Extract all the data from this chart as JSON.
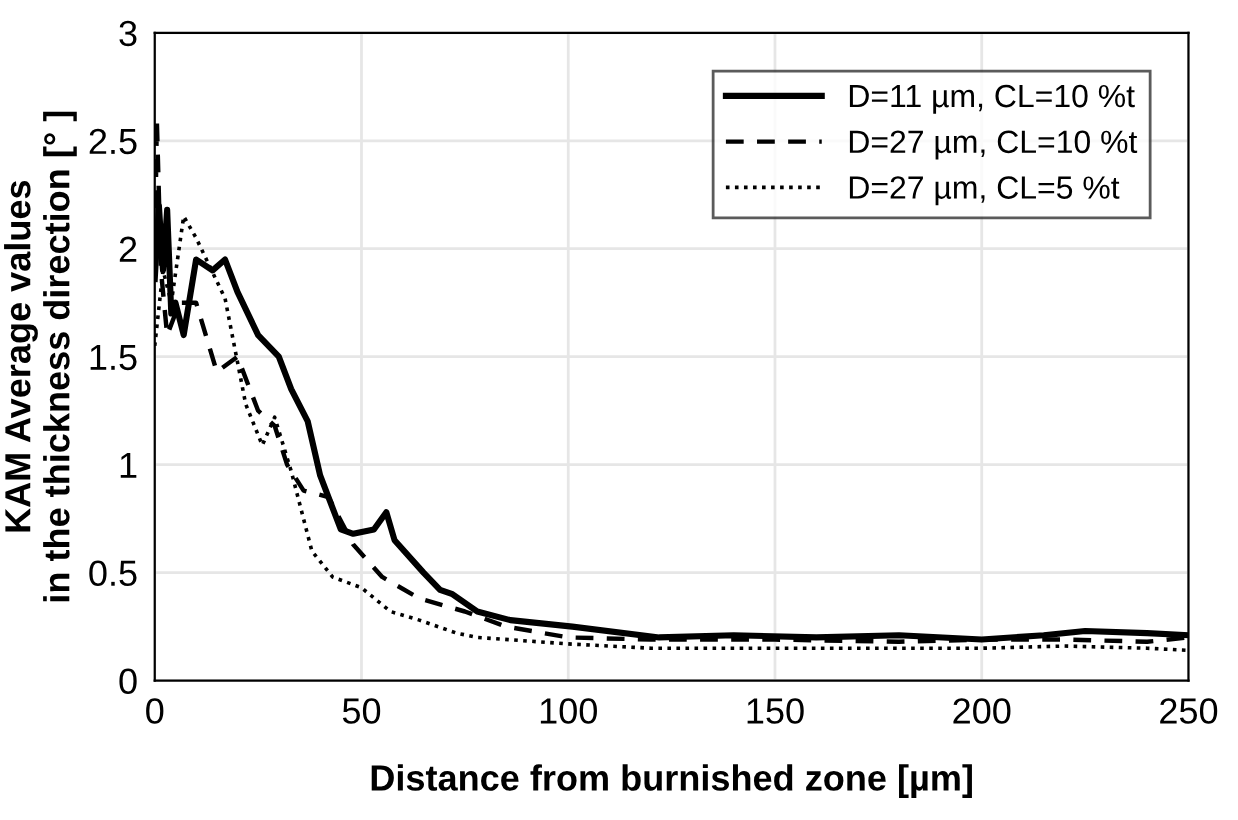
{
  "chart_data": {
    "type": "line",
    "xlabel": "Distance from burnished zone [µm]",
    "ylabel": "KAM Average values\nin the thickness direction [° ]",
    "xlim": [
      0,
      250
    ],
    "ylim": [
      0,
      3
    ],
    "xticks": [
      0,
      50,
      100,
      150,
      200,
      250
    ],
    "yticks": [
      0,
      0.5,
      1,
      1.5,
      2,
      2.5,
      3
    ],
    "grid": true,
    "legend": "top right",
    "marker": "none",
    "series": [
      {
        "name": "D=11 µm, CL=10 %t",
        "color": "#000000",
        "line_style": "solid",
        "x": [
          0,
          1,
          2,
          3,
          4,
          5,
          7,
          10,
          14,
          17,
          20,
          25,
          30,
          33,
          37,
          40,
          45,
          48,
          53,
          56,
          58,
          65,
          69,
          72,
          78,
          86,
          101,
          122,
          140,
          160,
          180,
          200,
          215,
          225,
          240,
          250
        ],
        "values": [
          1.86,
          2.2,
          1.9,
          2.18,
          1.7,
          1.75,
          1.6,
          1.95,
          1.9,
          1.95,
          1.8,
          1.6,
          1.5,
          1.35,
          1.2,
          0.95,
          0.7,
          0.68,
          0.7,
          0.78,
          0.65,
          0.5,
          0.42,
          0.4,
          0.32,
          0.28,
          0.25,
          0.2,
          0.21,
          0.2,
          0.21,
          0.19,
          0.21,
          0.23,
          0.22,
          0.21
        ]
      },
      {
        "name": "D=27 µm, CL=10 %t",
        "color": "#000000",
        "line_style": "dashed",
        "x": [
          0,
          0.5,
          1.5,
          3,
          6,
          10,
          15,
          20,
          25,
          29,
          32,
          36,
          42,
          48,
          55,
          64,
          75,
          85,
          100,
          120,
          150,
          180,
          200,
          220,
          240,
          250
        ],
        "values": [
          1.9,
          2.6,
          1.9,
          1.6,
          1.75,
          1.75,
          1.43,
          1.5,
          1.25,
          1.18,
          1.0,
          0.88,
          0.85,
          0.63,
          0.48,
          0.38,
          0.32,
          0.25,
          0.2,
          0.19,
          0.19,
          0.18,
          0.19,
          0.19,
          0.18,
          0.2
        ]
      },
      {
        "name": "D=27 µm, CL=5 %t",
        "color": "#000000",
        "line_style": "dotted",
        "x": [
          0,
          2,
          4,
          7,
          10,
          17,
          22,
          26,
          29,
          33,
          38,
          43,
          50,
          57,
          64,
          73,
          78,
          100,
          120,
          150,
          180,
          200,
          220,
          240,
          250
        ],
        "values": [
          1.55,
          1.9,
          1.75,
          2.15,
          2.05,
          1.77,
          1.28,
          1.09,
          1.22,
          0.97,
          0.6,
          0.48,
          0.43,
          0.32,
          0.28,
          0.22,
          0.2,
          0.17,
          0.15,
          0.15,
          0.15,
          0.15,
          0.16,
          0.15,
          0.14
        ]
      }
    ]
  }
}
